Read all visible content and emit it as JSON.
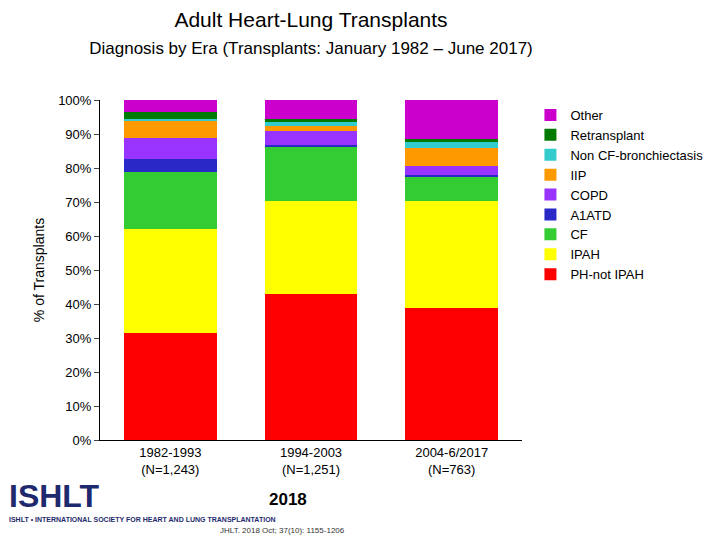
{
  "chart_data": {
    "type": "bar",
    "stacked": true,
    "title": "Adult Heart-Lung Transplants",
    "subtitle": "Diagnosis by Era (Transplants: January 1982 – June 2017)",
    "y_label": "% of Transplants",
    "categories": [
      "1982-1993\n(N=1,243)",
      "1994-2003\n(N=1,251)",
      "2004-6/2017\n(N=763)"
    ],
    "series": [
      {
        "name": "PH-not IPAH",
        "color": "#ff0000",
        "values": [
          31.5,
          42.9,
          38.8
        ]
      },
      {
        "name": "IPAH",
        "color": "#ffff00",
        "values": [
          30.5,
          27.4,
          31.5
        ]
      },
      {
        "name": "CF",
        "color": "#33cc33",
        "values": [
          16.8,
          15.9,
          7.1
        ]
      },
      {
        "name": "A1ATD",
        "color": "#2929c8",
        "values": [
          3.8,
          0.5,
          0.5
        ]
      },
      {
        "name": "COPD",
        "color": "#9933ff",
        "values": [
          6.2,
          4.1,
          2.7
        ]
      },
      {
        "name": "IIP",
        "color": "#ff9900",
        "values": [
          5.0,
          1.7,
          5.3
        ]
      },
      {
        "name": "Non CF-bronchiectasis",
        "color": "#33cccc",
        "values": [
          0.6,
          0.9,
          1.7
        ]
      },
      {
        "name": "Retransplant",
        "color": "#007a00",
        "values": [
          2.0,
          0.9,
          0.9
        ]
      },
      {
        "name": "Other",
        "color": "#cc00cc",
        "values": [
          3.6,
          5.7,
          11.5
        ]
      }
    ],
    "ylim": [
      0,
      100
    ],
    "yticks": [
      {
        "value": 0,
        "label": "0%"
      },
      {
        "value": 10,
        "label": "10%"
      },
      {
        "value": 20,
        "label": "20%"
      },
      {
        "value": 30,
        "label": "30%"
      },
      {
        "value": 40,
        "label": "40%"
      },
      {
        "value": 50,
        "label": "50%"
      },
      {
        "value": 60,
        "label": "60%"
      },
      {
        "value": 70,
        "label": "70%"
      },
      {
        "value": 80,
        "label": "80%"
      },
      {
        "value": 90,
        "label": "90%"
      },
      {
        "value": 100,
        "label": "100%"
      }
    ],
    "grid": false,
    "legend": "right",
    "annotations": [
      "ISHLT",
      "ISHLT • INTERNATIONAL SOCIETY FOR HEART AND LUNG TRANSPLANTATION",
      "2018",
      "JHLT. 2018 Oct; 37(10): 1155-1206"
    ]
  }
}
